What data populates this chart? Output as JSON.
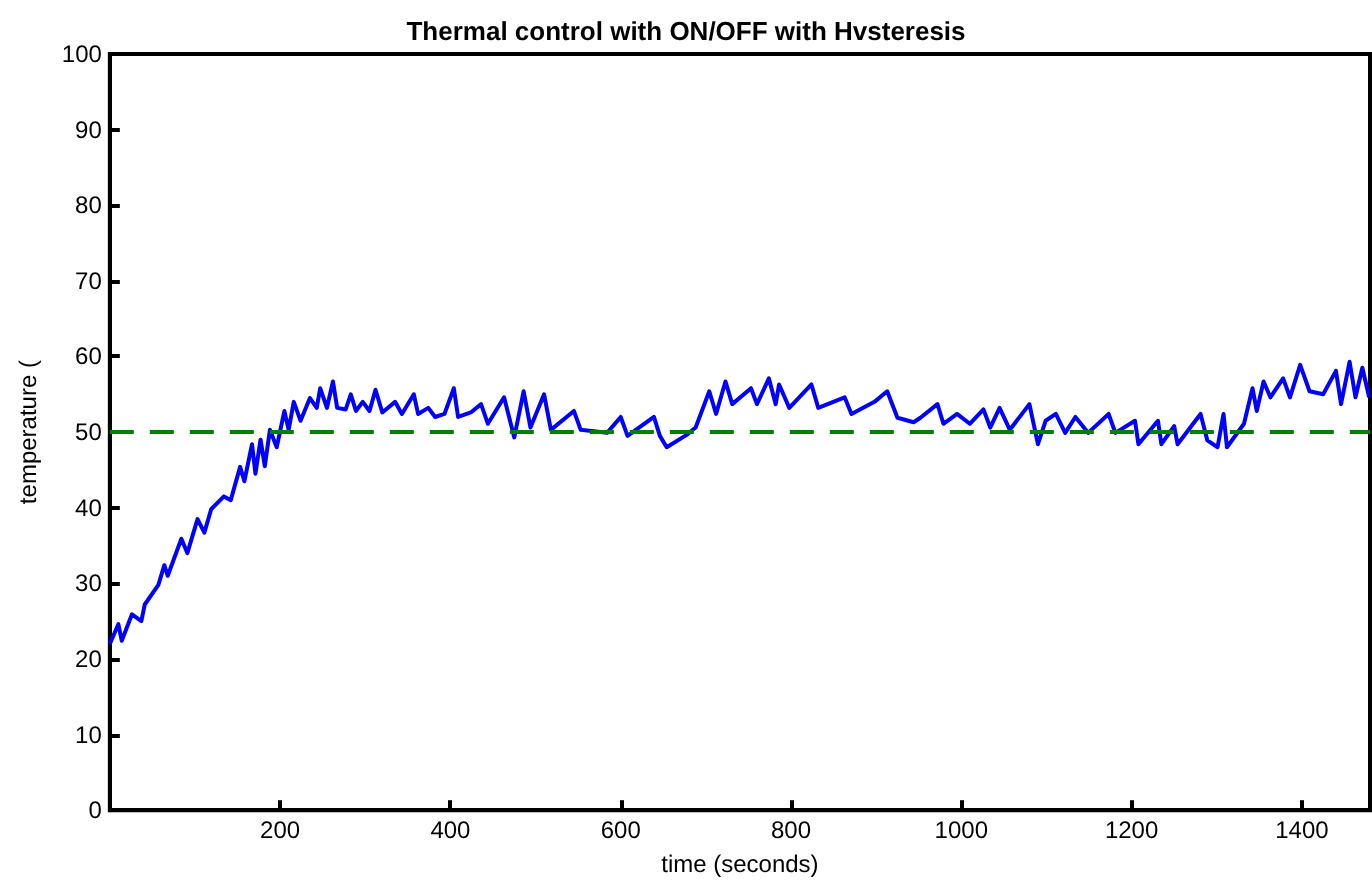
{
  "chart_data": {
    "type": "line",
    "title": "Thermal control with ON/OFF with Hvsteresis",
    "xlabel": "time (seconds)",
    "ylabel": "temperature (",
    "xlim": [
      0,
      1480
    ],
    "xticks": [
      200,
      400,
      600,
      800,
      1000,
      1200,
      1400
    ],
    "ylim": [
      0,
      100
    ],
    "yticks": [
      0,
      10,
      20,
      30,
      40,
      50,
      60,
      70,
      80,
      90,
      100
    ],
    "grid": false,
    "marker": "none",
    "line_style": "solid",
    "ref_lines": [
      {
        "axis": "y",
        "value": 50,
        "color": "#008000",
        "line_style": "dashed"
      }
    ],
    "series": [
      {
        "color": "#0000ff",
        "x": [
          0,
          10,
          14,
          26,
          37,
          41,
          57,
          64,
          68,
          84,
          91,
          103,
          111,
          119,
          134,
          142,
          153,
          158,
          167,
          171,
          177,
          182,
          188,
          196,
          205,
          210,
          216,
          224,
          235,
          243,
          247,
          255,
          262,
          267,
          277,
          283,
          289,
          297,
          305,
          312,
          320,
          335,
          343,
          357,
          362,
          374,
          382,
          393,
          404,
          409,
          424,
          436,
          444,
          463,
          475,
          486,
          494,
          510,
          518,
          545,
          553,
          584,
          600,
          608,
          639,
          646,
          654,
          677,
          688,
          704,
          712,
          723,
          731,
          753,
          760,
          774,
          782,
          786,
          798,
          824,
          832,
          863,
          871,
          898,
          913,
          925,
          944,
          952,
          972,
          979,
          995,
          1010,
          1026,
          1034,
          1045,
          1057,
          1080,
          1090,
          1099,
          1111,
          1122,
          1134,
          1149,
          1173,
          1181,
          1204,
          1208,
          1231,
          1235,
          1250,
          1254,
          1281,
          1289,
          1301,
          1308,
          1312,
          1332,
          1342,
          1347,
          1355,
          1363,
          1378,
          1386,
          1398,
          1409,
          1425,
          1440,
          1446,
          1456,
          1463,
          1471,
          1479
        ],
        "values": [
          22,
          24.6,
          22.4,
          25.9,
          25,
          27.2,
          29.8,
          32.4,
          31,
          35.9,
          34,
          38.5,
          36.7,
          39.8,
          41.5,
          41,
          45.4,
          43.5,
          48.4,
          44.5,
          49,
          45.5,
          50.3,
          48,
          52.8,
          50.3,
          54,
          51.5,
          54.5,
          53.2,
          55.8,
          53.2,
          56.7,
          53.2,
          53,
          55,
          52.8,
          54,
          52.8,
          55.6,
          52.6,
          54,
          52.4,
          55,
          52.4,
          53.2,
          52,
          52.4,
          55.8,
          52,
          52.6,
          53.7,
          51.1,
          54.6,
          49.3,
          55.4,
          50.6,
          55,
          50.3,
          52.8,
          50.3,
          49.9,
          52,
          49.5,
          52,
          49.5,
          48,
          49.6,
          50.6,
          55.4,
          52.4,
          56.7,
          53.7,
          55.8,
          53.7,
          57.1,
          53.7,
          56.3,
          53.2,
          56.3,
          53.2,
          54.6,
          52.4,
          54,
          55.4,
          51.9,
          51.3,
          51.9,
          53.7,
          51.1,
          52.4,
          51.1,
          53,
          50.6,
          53.2,
          50.3,
          53.7,
          48.4,
          51.5,
          52.4,
          49.9,
          52,
          49.9,
          52.4,
          49.9,
          51.5,
          48.4,
          51.5,
          48.4,
          50.8,
          48.4,
          52.4,
          48.9,
          48,
          52.4,
          48,
          51.1,
          55.8,
          52.8,
          56.7,
          54.6,
          57.1,
          54.6,
          58.9,
          55.4,
          55,
          58.1,
          53.7,
          59.3,
          54.6,
          58.5,
          54.6
        ]
      }
    ]
  }
}
